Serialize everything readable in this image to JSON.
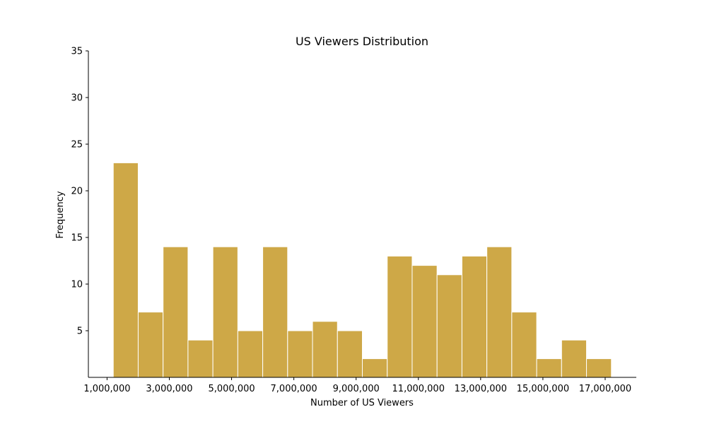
{
  "chart_data": {
    "type": "bar",
    "title": "US Viewers Distribution",
    "xlabel": "Number of US Viewers",
    "ylabel": "Frequency",
    "bar_color": "#cea847",
    "edge_color": "#ffffff",
    "xlim": [
      400000,
      18000000
    ],
    "ylim": [
      0,
      35
    ],
    "x_ticks": [
      1000000,
      3000000,
      5000000,
      7000000,
      9000000,
      11000000,
      13000000,
      15000000,
      17000000
    ],
    "x_tick_labels": [
      "1,000,000",
      "3,000,000",
      "5,000,000",
      "7,000,000",
      "9,000,000",
      "11,000,000",
      "13,000,000",
      "15,000,000",
      "17,000,000"
    ],
    "y_ticks": [
      5,
      10,
      15,
      20,
      25,
      30,
      35
    ],
    "y_tick_labels": [
      "5",
      "10",
      "15",
      "20",
      "25",
      "30",
      "35"
    ],
    "bin_edges": [
      1200000,
      2000000,
      2800000,
      3600000,
      4400000,
      5200000,
      6000000,
      6800000,
      7600000,
      8400000,
      9200000,
      10000000,
      10800000,
      11600000,
      12400000,
      13200000,
      14000000,
      14800000,
      15600000,
      16400000,
      17200000
    ],
    "values": [
      23,
      7,
      14,
      4,
      14,
      5,
      14,
      5,
      6,
      5,
      2,
      13,
      12,
      11,
      13,
      14,
      7,
      2,
      4,
      2
    ],
    "grid": false
  }
}
